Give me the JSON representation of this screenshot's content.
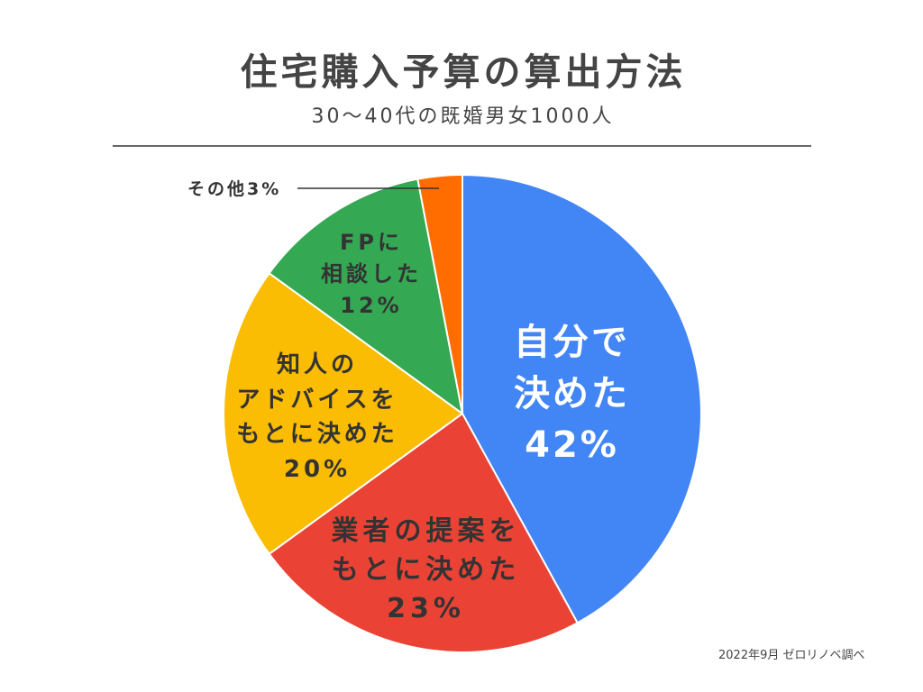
{
  "chart_data": {
    "type": "pie",
    "title": "住宅購入予算の算出方法",
    "subtitle": "30〜40代の既婚男女1000人",
    "source": "2022年9月 ゼロリノベ調べ",
    "slices": [
      {
        "label_lines": [
          "自分で",
          "決めた"
        ],
        "value": 42,
        "value_label": "42%",
        "color": "#4285F4"
      },
      {
        "label_lines": [
          "業者の提案を",
          "もとに決めた"
        ],
        "value": 23,
        "value_label": "23%",
        "color": "#EA4335"
      },
      {
        "label_lines": [
          "知人の",
          "アドバイスを",
          "もとに決めた"
        ],
        "value": 20,
        "value_label": "20%",
        "color": "#FBBC04"
      },
      {
        "label_lines": [
          "FPに",
          "相談した"
        ],
        "value": 12,
        "value_label": "12%",
        "color": "#34A853"
      },
      {
        "label_lines": [
          "その他"
        ],
        "value": 3,
        "value_label": "3%",
        "color": "#FF6D01"
      }
    ]
  }
}
